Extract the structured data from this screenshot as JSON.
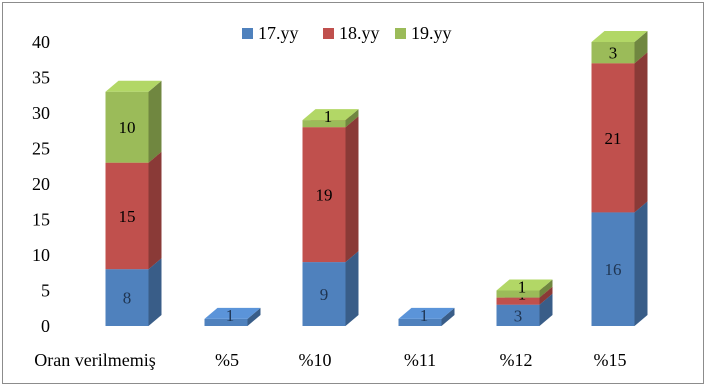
{
  "chart_data": {
    "type": "bar",
    "stacked": true,
    "three_d": true,
    "categories": [
      "Oran verilmemiş",
      "%5",
      "%10",
      "%11",
      "%12",
      "%15"
    ],
    "series": [
      {
        "name": "17.yy",
        "color": "#4F81BD",
        "values": [
          8,
          1,
          9,
          1,
          3,
          16
        ]
      },
      {
        "name": "18.yy",
        "color": "#C0504D",
        "values": [
          15,
          0,
          19,
          0,
          1,
          21
        ]
      },
      {
        "name": "19.yy",
        "color": "#9BBB59",
        "values": [
          10,
          0,
          1,
          0,
          1,
          3
        ]
      }
    ],
    "data_labels": [
      [
        "8",
        "15",
        "10"
      ],
      [
        "1",
        "",
        ""
      ],
      [
        "9",
        "19",
        "1"
      ],
      [
        "1",
        "",
        ""
      ],
      [
        "3",
        "1",
        "1"
      ],
      [
        "16",
        "21",
        "3"
      ]
    ],
    "ylim": [
      0,
      40
    ],
    "yticks": [
      "0",
      "5",
      "10",
      "15",
      "20",
      "25",
      "30",
      "35",
      "40"
    ],
    "grid": false,
    "legend_position": "top"
  }
}
